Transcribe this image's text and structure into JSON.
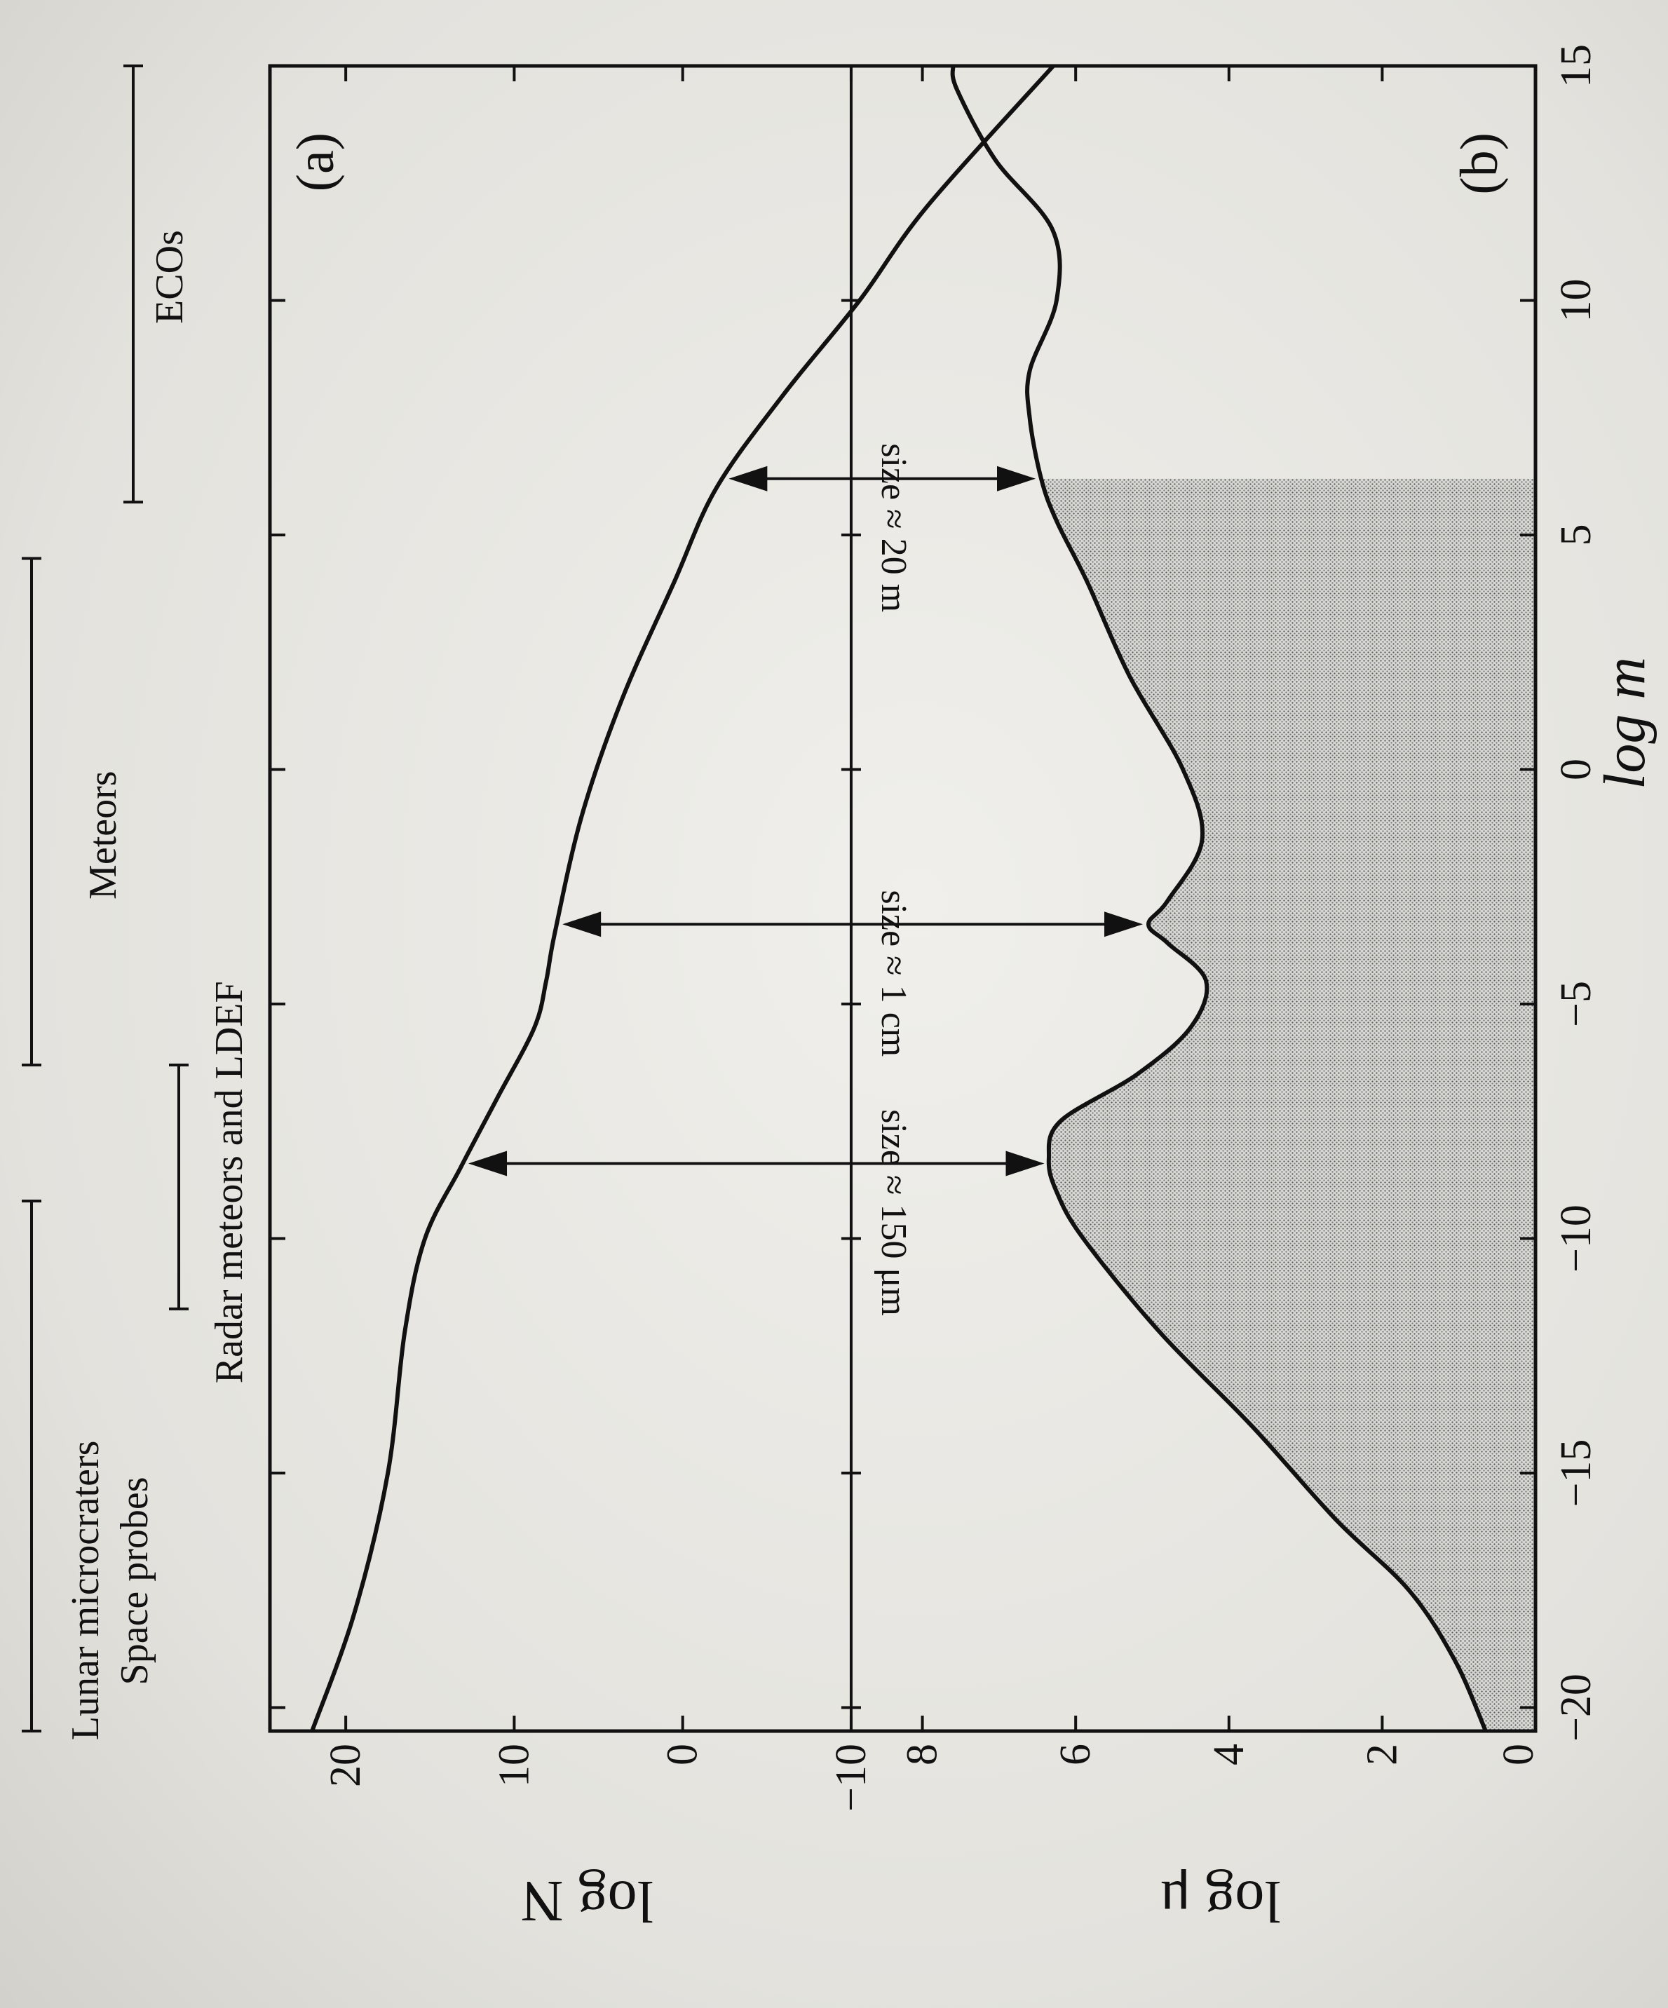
{
  "chart_data": {
    "type": "line",
    "x_axis": {
      "label": "log m",
      "range": [
        -20.5,
        15
      ],
      "ticks": [
        -20,
        -15,
        -10,
        -5,
        0,
        5,
        10,
        15
      ],
      "tick_labels": [
        "−20",
        "−15",
        "−10",
        "−5",
        "0",
        "5",
        "10",
        "15"
      ]
    },
    "ranges": [
      {
        "label": "Lunar microcraters",
        "x_start": -20.5,
        "x_end": -9.2
      },
      {
        "label": "Space probes",
        "x_start": -20.5,
        "x_end": -9.2
      },
      {
        "label": "Radar meteors and LDEF",
        "x_start": -11.5,
        "x_end": -6.3
      },
      {
        "label": "Meteors",
        "x_start": -6.3,
        "x_end": 4.5
      },
      {
        "label": "ECOs",
        "x_start": 5.7,
        "x_end": 15
      }
    ],
    "panels": [
      {
        "panel_label": "(a)",
        "ylabel": "log N",
        "ylim": [
          -11.5,
          24.5
        ],
        "yticks": [
          20,
          10,
          0,
          -10
        ],
        "ytick_labels": [
          "20",
          "10",
          "0",
          "−10"
        ],
        "reference_line_y": -10,
        "series": [
          {
            "x": [
              -20.5,
              -18,
              -15,
              -12,
              -10,
              -8.5,
              -7,
              -5.5,
              -4.5,
              -3.5,
              -1,
              1.5,
              4,
              6,
              8,
              10,
              12,
              15
            ],
            "values": [
              22,
              19.5,
              17.5,
              16.5,
              15.3,
              13.2,
              11,
              8.8,
              8.1,
              7.6,
              6,
              3.6,
              0.5,
              -2,
              -6,
              -10.5,
              -14.5,
              -22
            ]
          }
        ]
      },
      {
        "panel_label": "(b)",
        "ylabel": "log μ",
        "ylim": [
          0,
          8.6
        ],
        "yticks": [
          0,
          2,
          4,
          6,
          8
        ],
        "ytick_labels": [
          "0",
          "2",
          "4",
          "6",
          "8"
        ],
        "series": [
          {
            "x": [
              -20.5,
              -19,
              -17.5,
              -16,
              -14,
              -12,
              -10,
              -9,
              -8.3,
              -7.5,
              -6.5,
              -5.5,
              -4.5,
              -3.7,
              -3.3,
              -2.8,
              -1.5,
              0,
              2,
              4,
              5.3,
              6.2,
              7.5,
              8.5,
              10,
              11.5,
              13,
              14.5,
              15
            ],
            "values": [
              0.65,
              1.05,
              1.65,
              2.6,
              3.7,
              4.9,
              5.9,
              6.25,
              6.35,
              6.2,
              5.2,
              4.5,
              4.3,
              4.8,
              5.05,
              4.8,
              4.35,
              4.6,
              5.3,
              5.85,
              6.25,
              6.45,
              6.6,
              6.6,
              6.25,
              6.3,
              7.05,
              7.55,
              7.6
            ]
          }
        ],
        "shaded_region": {
          "x_start": -20.5,
          "x_end": 6.2
        }
      }
    ],
    "annotations": [
      {
        "text": "size ≈ 150 μm",
        "x": -8.4
      },
      {
        "text": "size ≈ 1 cm",
        "x": -3.3
      },
      {
        "text": "size ≈ 20 m",
        "x": 6.2
      }
    ]
  }
}
